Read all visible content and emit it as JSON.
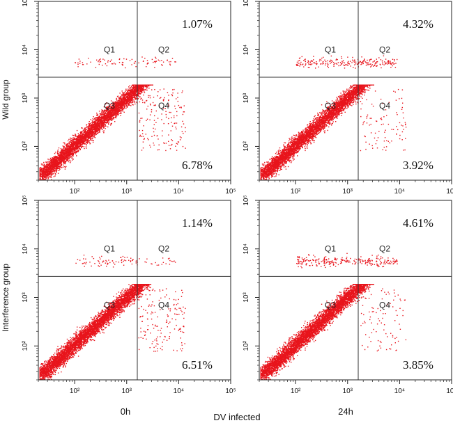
{
  "figure": {
    "x_axis_title": "DV infected",
    "row_labels": [
      "Wild group",
      "Interference group"
    ],
    "col_labels": [
      "0h",
      "24h"
    ]
  },
  "chart_data": [
    {
      "type": "scatter",
      "title": "Wild group, 0h",
      "xscale": "log",
      "yscale": "log",
      "xlim": [
        20,
        100000
      ],
      "ylim": [
        20,
        100000
      ],
      "x_ticks": [
        100,
        1000,
        10000,
        100000
      ],
      "y_ticks": [
        100,
        1000,
        10000,
        100000
      ],
      "x_tick_labels": [
        "10^2",
        "10^3",
        "10^4",
        "10^5"
      ],
      "y_tick_labels": [
        "10^2",
        "10^3",
        "10^4",
        "10^5"
      ],
      "gates": {
        "x": 1600,
        "y": 2700
      },
      "quadrant_labels": [
        "Q1",
        "Q2",
        "Q3",
        "Q4"
      ],
      "annotations": [
        {
          "quadrant": "Q2",
          "text": "1.07%"
        },
        {
          "quadrant": "Q4",
          "text": "6.78%"
        }
      ],
      "population_percent": {
        "Q2": 1.07,
        "Q4": 6.78
      },
      "point_color": "#e8141c"
    },
    {
      "type": "scatter",
      "title": "Wild group, 24h",
      "xscale": "log",
      "yscale": "log",
      "xlim": [
        20,
        100000
      ],
      "ylim": [
        20,
        100000
      ],
      "x_ticks": [
        100,
        1000,
        10000,
        100000
      ],
      "y_ticks": [
        100,
        1000,
        10000,
        100000
      ],
      "x_tick_labels": [
        "10^2",
        "10^3",
        "10^4",
        "10^5"
      ],
      "y_tick_labels": [
        "10^2",
        "10^3",
        "10^4",
        "10^5"
      ],
      "gates": {
        "x": 1600,
        "y": 2700
      },
      "quadrant_labels": [
        "Q1",
        "Q2",
        "Q3",
        "Q4"
      ],
      "annotations": [
        {
          "quadrant": "Q2",
          "text": "4.32%"
        },
        {
          "quadrant": "Q4",
          "text": "3.92%"
        }
      ],
      "population_percent": {
        "Q2": 4.32,
        "Q4": 3.92
      },
      "point_color": "#e8141c"
    },
    {
      "type": "scatter",
      "title": "Interference group, 0h",
      "xscale": "log",
      "yscale": "log",
      "xlim": [
        20,
        100000
      ],
      "ylim": [
        20,
        100000
      ],
      "x_ticks": [
        100,
        1000,
        10000,
        100000
      ],
      "y_ticks": [
        100,
        1000,
        10000,
        100000
      ],
      "x_tick_labels": [
        "10^2",
        "10^3",
        "10^4",
        "10^5"
      ],
      "y_tick_labels": [
        "10^2",
        "10^3",
        "10^4",
        "10^5"
      ],
      "gates": {
        "x": 1600,
        "y": 2700
      },
      "quadrant_labels": [
        "Q1",
        "Q2",
        "Q3",
        "Q4"
      ],
      "annotations": [
        {
          "quadrant": "Q2",
          "text": "1.14%"
        },
        {
          "quadrant": "Q4",
          "text": "6.51%"
        }
      ],
      "population_percent": {
        "Q2": 1.14,
        "Q4": 6.51
      },
      "point_color": "#e8141c"
    },
    {
      "type": "scatter",
      "title": "Interference group, 24h",
      "xscale": "log",
      "yscale": "log",
      "xlim": [
        20,
        100000
      ],
      "ylim": [
        20,
        100000
      ],
      "x_ticks": [
        100,
        1000,
        10000,
        100000
      ],
      "y_ticks": [
        100,
        1000,
        10000,
        100000
      ],
      "x_tick_labels": [
        "10^2",
        "10^3",
        "10^4",
        "10^5"
      ],
      "y_tick_labels": [
        "10^2",
        "10^3",
        "10^4",
        "10^5"
      ],
      "gates": {
        "x": 1600,
        "y": 2700
      },
      "quadrant_labels": [
        "Q1",
        "Q2",
        "Q3",
        "Q4"
      ],
      "annotations": [
        {
          "quadrant": "Q2",
          "text": "4.61%"
        },
        {
          "quadrant": "Q4",
          "text": "3.85%"
        }
      ],
      "population_percent": {
        "Q2": 4.61,
        "Q4": 3.85
      },
      "point_color": "#e8141c"
    }
  ]
}
